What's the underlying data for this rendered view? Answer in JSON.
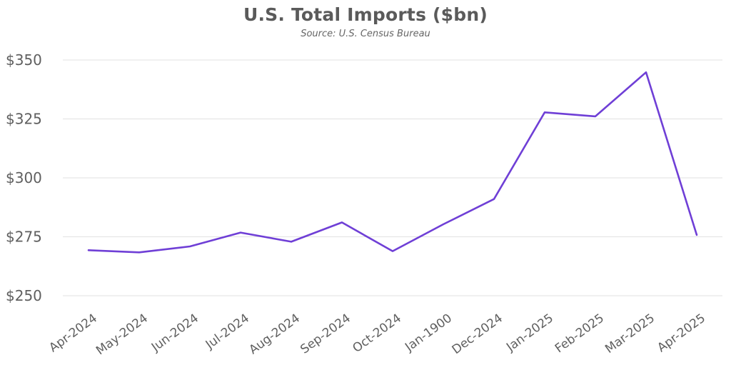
{
  "chart_data": {
    "type": "line",
    "title": "U.S. Total Imports ($bn)",
    "subtitle": "Source: U.S. Census Bureau",
    "categories": [
      "Apr-2024",
      "May-2024",
      "Jun-2024",
      "Jul-2024",
      "Aug-2024",
      "Sep-2024",
      "Oct-2024",
      "Jan-1900",
      "Dec-2024",
      "Jan-2025",
      "Feb-2025",
      "Mar-2025",
      "Apr-2025"
    ],
    "series": [
      {
        "values": [
          269.3,
          268.4,
          270.9,
          276.8,
          272.9,
          281.1,
          268.9,
          280.3,
          291.0,
          327.8,
          326.1,
          344.8,
          275.8
        ],
        "color": "#6f3fd6"
      }
    ],
    "yticks": [
      "$250",
      "$275",
      "$300",
      "$325",
      "$350"
    ],
    "ylim": [
      250,
      350
    ],
    "xlabel": "",
    "ylabel": "",
    "grid": "horizontal",
    "legend": "none",
    "colors": {
      "line": "#6f3fd6",
      "grid": "#e2e2e2",
      "text": "#5f5f5f"
    }
  }
}
